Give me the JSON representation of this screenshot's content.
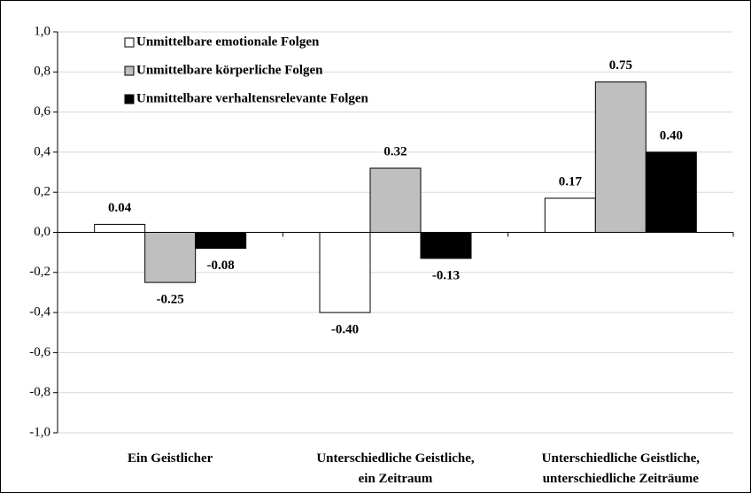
{
  "chart_data": {
    "type": "bar",
    "categories": [
      [
        "Ein Geistlicher"
      ],
      [
        "Unterschiedliche Geistliche,",
        "ein Zeitraum"
      ],
      [
        "Unterschiedliche Geistliche,",
        "unterschiedliche Zeiträume"
      ]
    ],
    "series": [
      {
        "name": "Unmittelbare emotionale Folgen",
        "color": "#ffffff",
        "values": [
          0.04,
          -0.4,
          0.17
        ],
        "value_labels": [
          "0.04",
          "-0.40",
          "0.17"
        ]
      },
      {
        "name": "Unmittelbare körperliche Folgen",
        "color": "#bfbfbf",
        "values": [
          -0.25,
          0.32,
          0.75
        ],
        "value_labels": [
          "-0.25",
          "0.32",
          "0.75"
        ]
      },
      {
        "name": "Unmittelbare verhaltensrelevante Folgen",
        "color": "#000000",
        "values": [
          -0.08,
          -0.13,
          0.4
        ],
        "value_labels": [
          "-0.08",
          "-0.13",
          "0.40"
        ]
      }
    ],
    "ylim": [
      -1,
      1
    ],
    "yticks": [
      {
        "value": -1,
        "label": "-1,0"
      },
      {
        "value": -0.8,
        "label": "-0,8"
      },
      {
        "value": -0.6,
        "label": "-0,6"
      },
      {
        "value": -0.4,
        "label": "-0,4"
      },
      {
        "value": -0.2,
        "label": "-0,2"
      },
      {
        "value": 0,
        "label": "0,0"
      },
      {
        "value": 0.2,
        "label": "0,2"
      },
      {
        "value": 0.4,
        "label": "0,4"
      },
      {
        "value": 0.6,
        "label": "0,6"
      },
      {
        "value": 0.8,
        "label": "0,8"
      },
      {
        "value": 1,
        "label": "1,0"
      }
    ],
    "grid": true,
    "legend": "top-left"
  }
}
